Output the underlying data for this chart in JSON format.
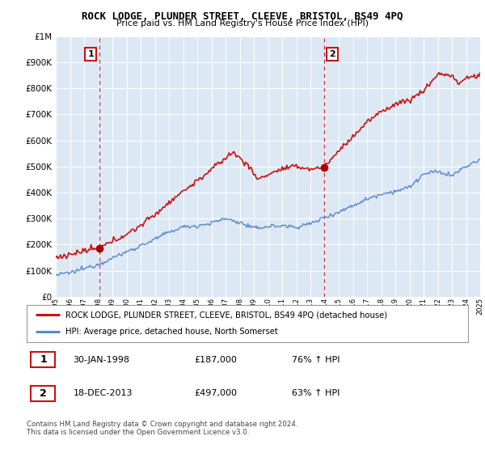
{
  "title": "ROCK LODGE, PLUNDER STREET, CLEEVE, BRISTOL, BS49 4PQ",
  "subtitle": "Price paid vs. HM Land Registry's House Price Index (HPI)",
  "legend_line1": "ROCK LODGE, PLUNDER STREET, CLEEVE, BRISTOL, BS49 4PQ (detached house)",
  "legend_line2": "HPI: Average price, detached house, North Somerset",
  "sale1_date": "30-JAN-1998",
  "sale1_price": "£187,000",
  "sale1_hpi": "76% ↑ HPI",
  "sale1_year": 1998.08,
  "sale1_value": 187000,
  "sale2_date": "18-DEC-2013",
  "sale2_price": "£497,000",
  "sale2_hpi": "63% ↑ HPI",
  "sale2_year": 2013.96,
  "sale2_value": 497000,
  "xmin": 1995,
  "xmax": 2025,
  "ymin": 0,
  "ymax": 1000000,
  "red_color": "#cc1111",
  "blue_color": "#5588cc",
  "marker_fill": "#aa0000",
  "vline_color": "#cc1111",
  "footer_text": "Contains HM Land Registry data © Crown copyright and database right 2024.\nThis data is licensed under the Open Government Licence v3.0.",
  "background_color": "#ffffff",
  "plot_bg_color": "#dde8f5"
}
